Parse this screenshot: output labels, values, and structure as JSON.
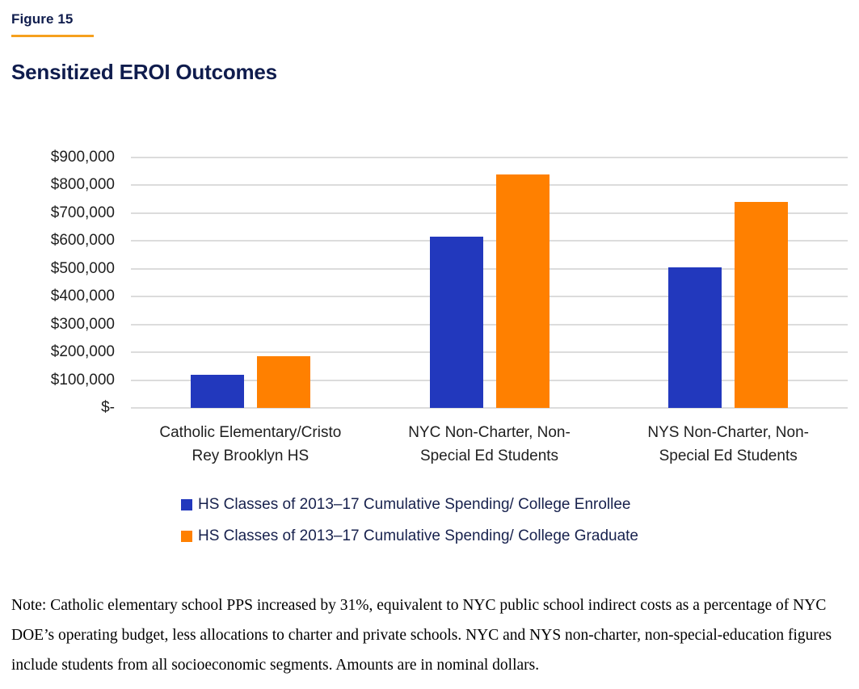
{
  "header": {
    "figure_label": "Figure 15",
    "title": "Sensitized EROI Outcomes"
  },
  "chart_data": {
    "type": "bar",
    "title": "Sensitized EROI Outcomes",
    "xlabel": "",
    "ylabel": "",
    "ylim": [
      0,
      900000
    ],
    "grid": true,
    "legend_position": "bottom-left",
    "yticks": [
      {
        "label": "$900,000",
        "value": 900000
      },
      {
        "label": "$800,000",
        "value": 800000
      },
      {
        "label": "$700,000",
        "value": 700000
      },
      {
        "label": "$600,000",
        "value": 600000
      },
      {
        "label": "$500,000",
        "value": 500000
      },
      {
        "label": "$400,000",
        "value": 400000
      },
      {
        "label": "$300,000",
        "value": 300000
      },
      {
        "label": "$200,000",
        "value": 200000
      },
      {
        "label": "$100,000",
        "value": 100000
      },
      {
        "label": "$-",
        "value": 0
      }
    ],
    "categories": [
      {
        "lines": [
          "Catholic Elementary/Cristo",
          "Rey Brooklyn HS"
        ]
      },
      {
        "lines": [
          "NYC Non-Charter, Non-",
          "Special Ed Students"
        ]
      },
      {
        "lines": [
          "NYS Non-Charter, Non-",
          "Special Ed Students"
        ]
      }
    ],
    "series": [
      {
        "name": "HS Classes of 2013–17 Cumulative Spending/ College Enrollee",
        "color": "#2238bd",
        "values": [
          120000,
          615000,
          505000
        ]
      },
      {
        "name": "HS Classes of 2013–17 Cumulative Spending/ College Graduate",
        "color": "#ff8000",
        "values": [
          187000,
          838000,
          740000
        ]
      }
    ]
  },
  "colors": {
    "heading_navy": "#0f1c4d",
    "rule_orange": "#f5a01e",
    "bar_blue": "#2238bd",
    "bar_orange": "#ff8000",
    "gridline_gray": "#dcdcdc",
    "axis_text": "#1f1f1f",
    "legend_text": "#17214d"
  },
  "note": "Note: Catholic elementary school PPS increased by 31%, equivalent to NYC public school indirect costs as a percentage of NYC DOE’s operating budget, less allocations to charter and private schools. NYC and NYS non-charter, non-special-education figures include students from all socioeconomic segments. Amounts are in nominal dollars."
}
